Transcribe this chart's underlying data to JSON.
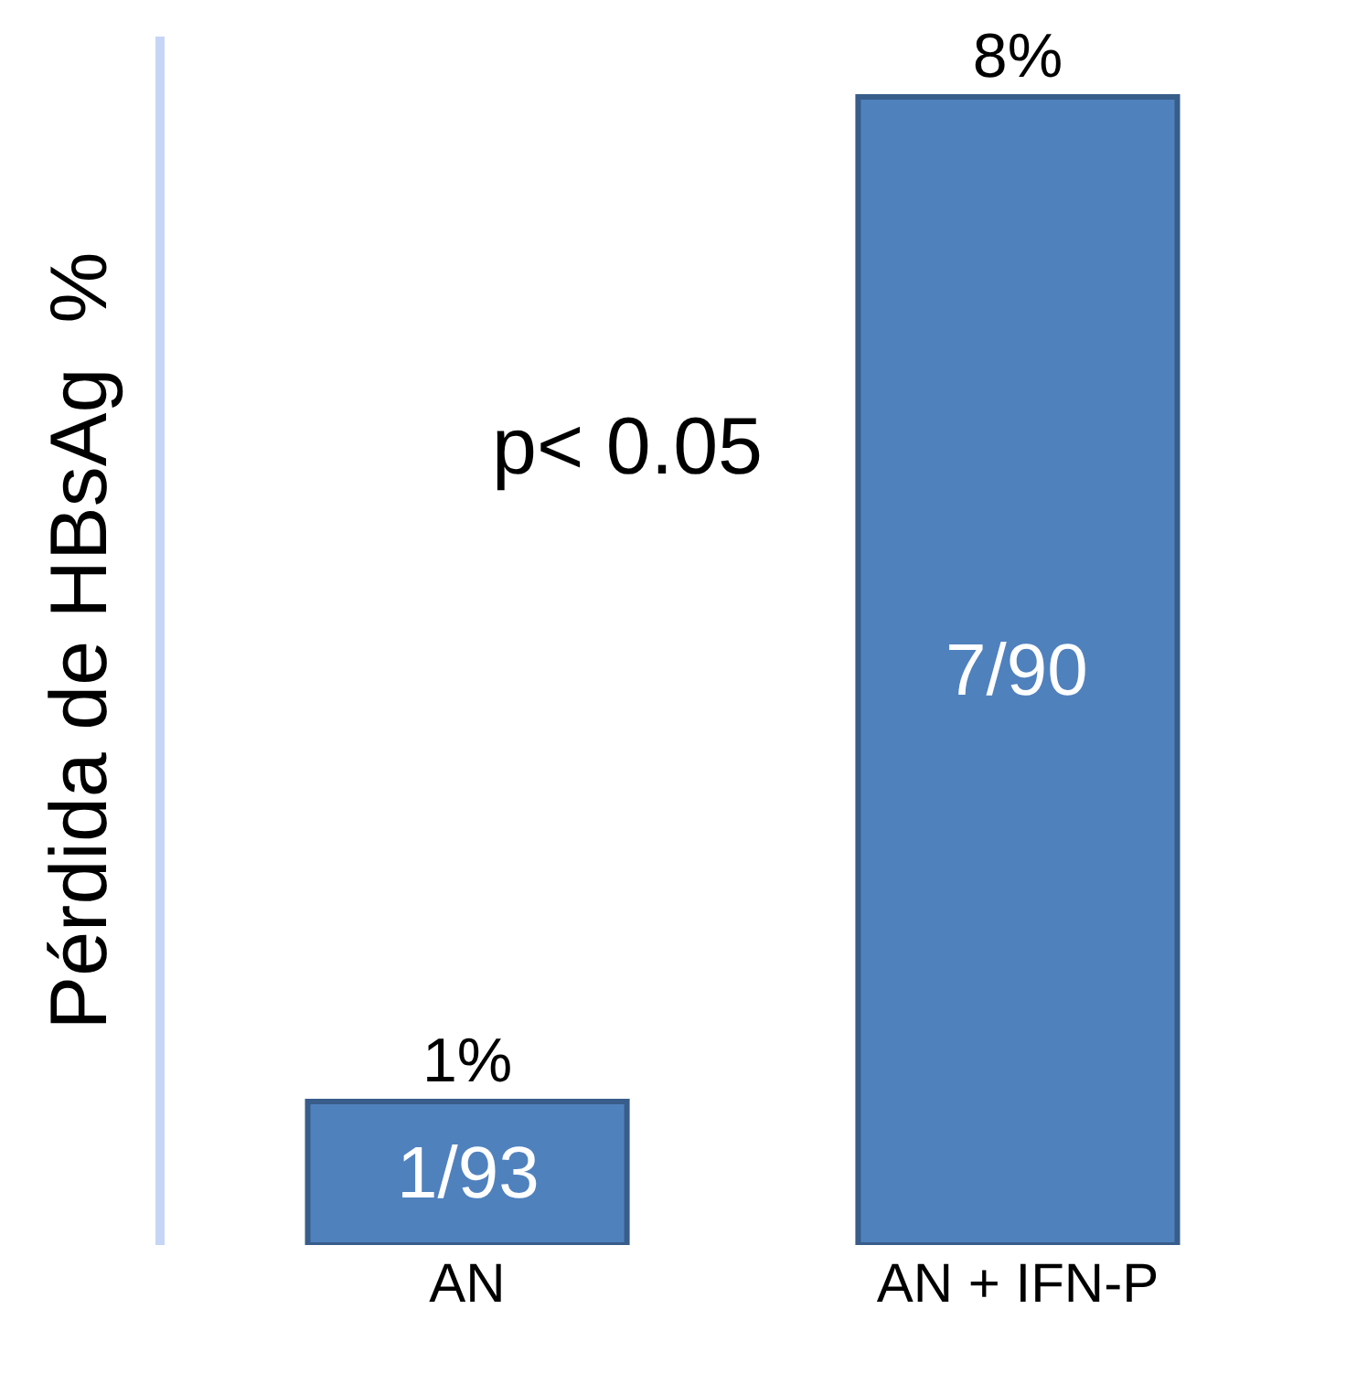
{
  "chart_data": {
    "type": "bar",
    "ylabel": "Pérdida de HBsAg  %",
    "categories": [
      "AN",
      "AN + IFN-P"
    ],
    "values": [
      1,
      8
    ],
    "value_labels": [
      "1%",
      "8%"
    ],
    "color": "#4f81bd",
    "annotations": [
      "p< 0.05",
      "1/93",
      "7/90"
    ],
    "grid": false,
    "legend": false,
    "tick_labels": "x"
  }
}
